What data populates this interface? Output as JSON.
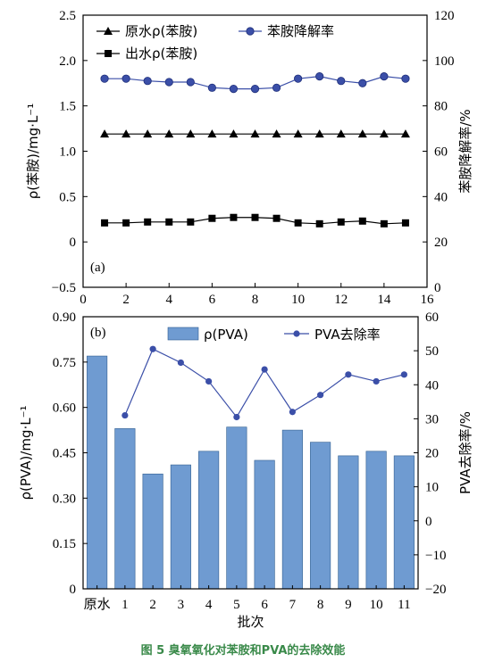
{
  "chart_data": [
    {
      "type": "line",
      "panel_label": "(a)",
      "x": [
        1,
        2,
        3,
        4,
        5,
        6,
        7,
        8,
        9,
        10,
        11,
        12,
        13,
        14,
        15
      ],
      "xlim": [
        0,
        16
      ],
      "xticks": [
        "0",
        "2",
        "4",
        "6",
        "8",
        "10",
        "12",
        "14",
        "16"
      ],
      "ylabel": "ρ(苯胺)/mg·L⁻¹",
      "ylim": [
        -0.5,
        2.5
      ],
      "yticks": [
        "−0.5",
        "0",
        "0.5",
        "1.0",
        "1.5",
        "2.0",
        "2.5"
      ],
      "y2label": "苯胺降解率/%",
      "y2lim": [
        0,
        120
      ],
      "y2ticks": [
        "0",
        "20",
        "40",
        "60",
        "80",
        "100",
        "120"
      ],
      "series": [
        {
          "name": "原水ρ(苯胺)",
          "axis": "left",
          "marker": "triangle",
          "values": [
            1.19,
            1.19,
            1.19,
            1.19,
            1.19,
            1.19,
            1.19,
            1.19,
            1.19,
            1.19,
            1.19,
            1.19,
            1.19,
            1.19,
            1.19
          ]
        },
        {
          "name": "出水ρ(苯胺)",
          "axis": "left",
          "marker": "square",
          "values": [
            0.21,
            0.21,
            0.22,
            0.22,
            0.22,
            0.26,
            0.27,
            0.27,
            0.26,
            0.21,
            0.2,
            0.22,
            0.23,
            0.2,
            0.21
          ]
        },
        {
          "name": "苯胺降解率",
          "axis": "right",
          "marker": "circle",
          "values": [
            92,
            92,
            91,
            90.5,
            90.5,
            88,
            87.5,
            87.5,
            88,
            92,
            93,
            91,
            90,
            93,
            92
          ]
        }
      ],
      "legend": "top",
      "colors": {
        "line": "#3b4fa8",
        "marker": "#3b4fa8",
        "black": "#000000"
      }
    },
    {
      "type": "bar",
      "panel_label": "(b)",
      "categories": [
        "原水",
        "1",
        "2",
        "3",
        "4",
        "5",
        "6",
        "7",
        "8",
        "9",
        "10",
        "11"
      ],
      "xlabel": "批次",
      "ylabel": "ρ(PVA)/mg·L⁻¹",
      "ylim": [
        0,
        0.9
      ],
      "yticks": [
        "0",
        "0.15",
        "0.30",
        "0.45",
        "0.60",
        "0.75",
        "0.90"
      ],
      "y2label": "PVA去除率/%",
      "y2lim": [
        -20,
        60
      ],
      "y2ticks": [
        "−20",
        "−10",
        "0",
        "10",
        "20",
        "30",
        "40",
        "50",
        "60"
      ],
      "series": [
        {
          "name": "ρ(PVA)",
          "type": "bar",
          "axis": "left",
          "values": [
            0.77,
            0.53,
            0.38,
            0.41,
            0.455,
            0.535,
            0.425,
            0.525,
            0.485,
            0.44,
            0.455,
            0.44
          ]
        },
        {
          "name": "PVA去除率",
          "type": "line",
          "axis": "right",
          "values": [
            null,
            31,
            50.5,
            46.5,
            41,
            30.5,
            44.5,
            32,
            37,
            43,
            41,
            43
          ]
        }
      ],
      "legend": "top",
      "colors": {
        "bar": "#6f9bd1",
        "bar_edge": "#2f5d8f",
        "line": "#3b4fa8"
      }
    }
  ],
  "caption": "图 5 臭氧氧化对苯胺和PVA的去除效能"
}
